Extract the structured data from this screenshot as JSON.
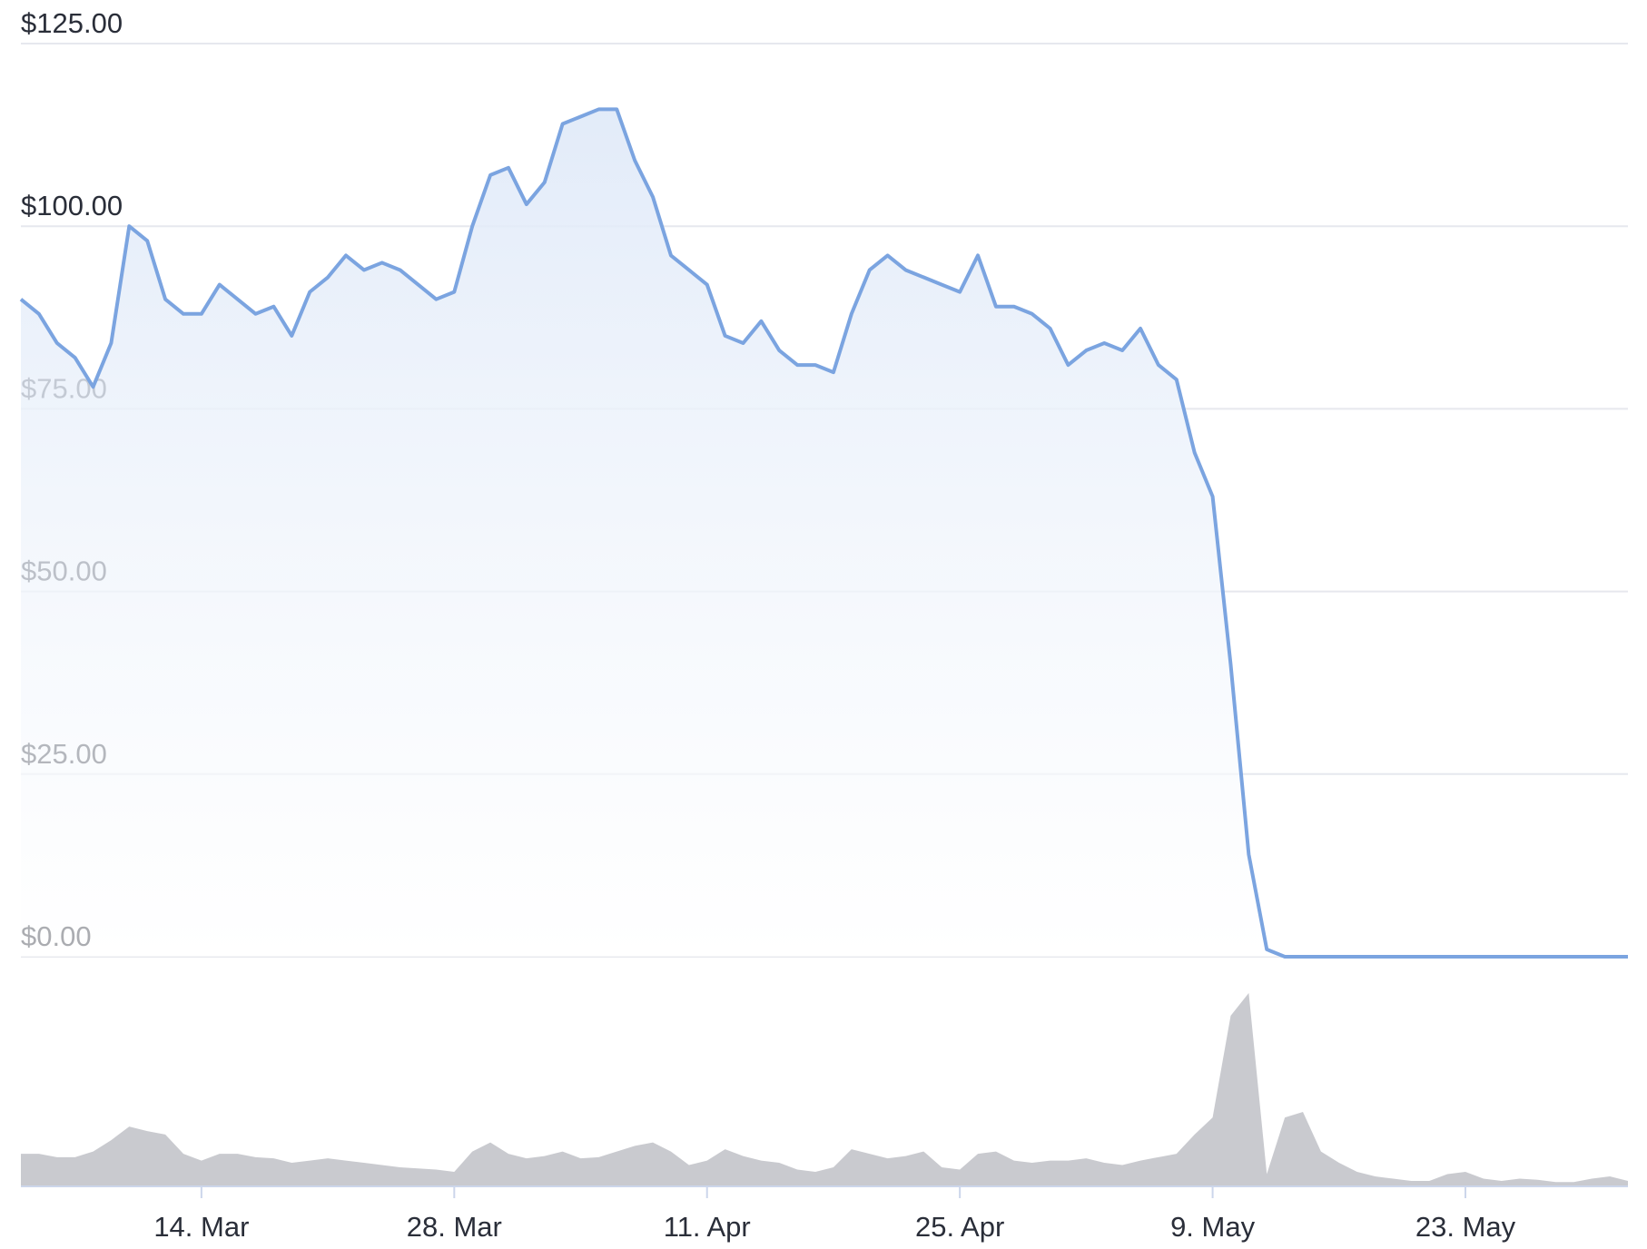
{
  "chart_data": {
    "type": "line",
    "categories": [
      "4. Mar",
      "5. Mar",
      "6. Mar",
      "7. Mar",
      "8. Mar",
      "9. Mar",
      "10. Mar",
      "11. Mar",
      "12. Mar",
      "13. Mar",
      "14. Mar",
      "15. Mar",
      "16. Mar",
      "17. Mar",
      "18. Mar",
      "19. Mar",
      "20. Mar",
      "21. Mar",
      "22. Mar",
      "23. Mar",
      "24. Mar",
      "25. Mar",
      "26. Mar",
      "27. Mar",
      "28. Mar",
      "29. Mar",
      "30. Mar",
      "31. Mar",
      "1. Apr",
      "2. Apr",
      "3. Apr",
      "4. Apr",
      "5. Apr",
      "6. Apr",
      "7. Apr",
      "8. Apr",
      "9. Apr",
      "10. Apr",
      "11. Apr",
      "12. Apr",
      "13. Apr",
      "14. Apr",
      "15. Apr",
      "16. Apr",
      "17. Apr",
      "18. Apr",
      "19. Apr",
      "20. Apr",
      "21. Apr",
      "22. Apr",
      "23. Apr",
      "24. Apr",
      "25. Apr",
      "26. Apr",
      "27. Apr",
      "28. Apr",
      "29. Apr",
      "30. Apr",
      "1. May",
      "2. May",
      "3. May",
      "4. May",
      "5. May",
      "6. May",
      "7. May",
      "8. May",
      "9. May",
      "10. May",
      "11. May",
      "12. May",
      "13. May",
      "14. May",
      "15. May",
      "16. May",
      "17. May",
      "18. May",
      "19. May",
      "20. May",
      "21. May",
      "22. May",
      "23. May",
      "24. May",
      "25. May",
      "26. May",
      "27. May",
      "28. May",
      "29. May",
      "30. May",
      "31. May",
      "1. Jun"
    ],
    "series": [
      {
        "color": "#7ba4e0",
        "values": [
          90,
          88,
          84,
          82,
          78,
          84,
          100,
          98,
          90,
          88,
          88,
          92,
          90,
          88,
          89,
          85,
          91,
          93,
          96,
          94,
          95,
          94,
          92,
          90,
          91,
          100,
          107,
          108,
          103,
          106,
          114,
          115,
          116,
          116,
          109,
          104,
          96,
          94,
          92,
          85,
          84,
          87,
          83,
          81,
          81,
          80,
          88,
          94,
          96,
          94,
          93,
          92,
          91,
          96,
          89,
          89,
          88,
          86,
          81,
          83,
          84,
          83,
          86,
          81,
          79,
          69,
          63,
          40,
          14,
          1,
          0,
          0,
          0,
          0,
          0,
          0,
          0,
          0,
          0,
          0,
          0,
          0,
          0,
          0,
          0,
          0,
          0,
          0,
          0,
          0
        ]
      }
    ],
    "volume": {
      "color": "#c9cacf",
      "values": [
        28,
        28,
        25,
        25,
        30,
        40,
        52,
        48,
        45,
        28,
        22,
        28,
        28,
        25,
        24,
        20,
        22,
        24,
        22,
        20,
        18,
        16,
        15,
        14,
        12,
        30,
        38,
        28,
        24,
        26,
        30,
        24,
        25,
        30,
        35,
        38,
        30,
        18,
        22,
        32,
        26,
        22,
        20,
        14,
        12,
        16,
        32,
        28,
        24,
        26,
        30,
        16,
        14,
        28,
        30,
        22,
        20,
        22,
        22,
        24,
        20,
        18,
        22,
        25,
        28,
        45,
        60,
        150,
        170,
        10,
        60,
        65,
        30,
        20,
        12,
        8,
        6,
        4,
        4,
        10,
        12,
        6,
        4,
        6,
        5,
        3,
        3,
        6,
        8,
        4
      ]
    },
    "ylim": [
      0,
      125
    ],
    "yticks": [
      {
        "value": 0,
        "label": "$0.00"
      },
      {
        "value": 25,
        "label": "$25.00"
      },
      {
        "value": 50,
        "label": "$50.00"
      },
      {
        "value": 75,
        "label": "$75.00"
      },
      {
        "value": 100,
        "label": "$100.00"
      },
      {
        "value": 125,
        "label": "$125.00"
      }
    ],
    "xticks": [
      "14. Mar",
      "28. Mar",
      "11. Apr",
      "25. Apr",
      "9. May",
      "23. May"
    ],
    "grid": true
  }
}
